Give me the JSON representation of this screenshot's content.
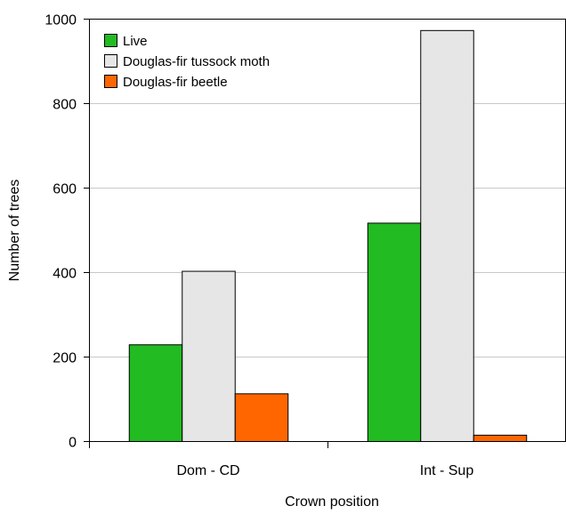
{
  "chart_data": {
    "type": "bar",
    "title": "",
    "xlabel": "Crown position",
    "ylabel": "Number of trees",
    "categories": [
      "Dom - CD",
      "Int - Sup"
    ],
    "series": [
      {
        "name": "Live",
        "values": [
          229,
          517
        ],
        "color": "#22bb22"
      },
      {
        "name": "Douglas-fir tussock moth",
        "values": [
          403,
          973
        ],
        "color": "#e6e6e6"
      },
      {
        "name": "Douglas-fir beetle",
        "values": [
          113,
          15
        ],
        "color": "#ff6600"
      }
    ],
    "ylim": [
      0,
      1000
    ],
    "yticks": [
      0,
      200,
      400,
      600,
      800,
      1000
    ],
    "ytick_labels": [
      "0",
      "200",
      "400",
      "600",
      "800",
      "1000"
    ],
    "grid": true,
    "legend_position": "top-left"
  }
}
